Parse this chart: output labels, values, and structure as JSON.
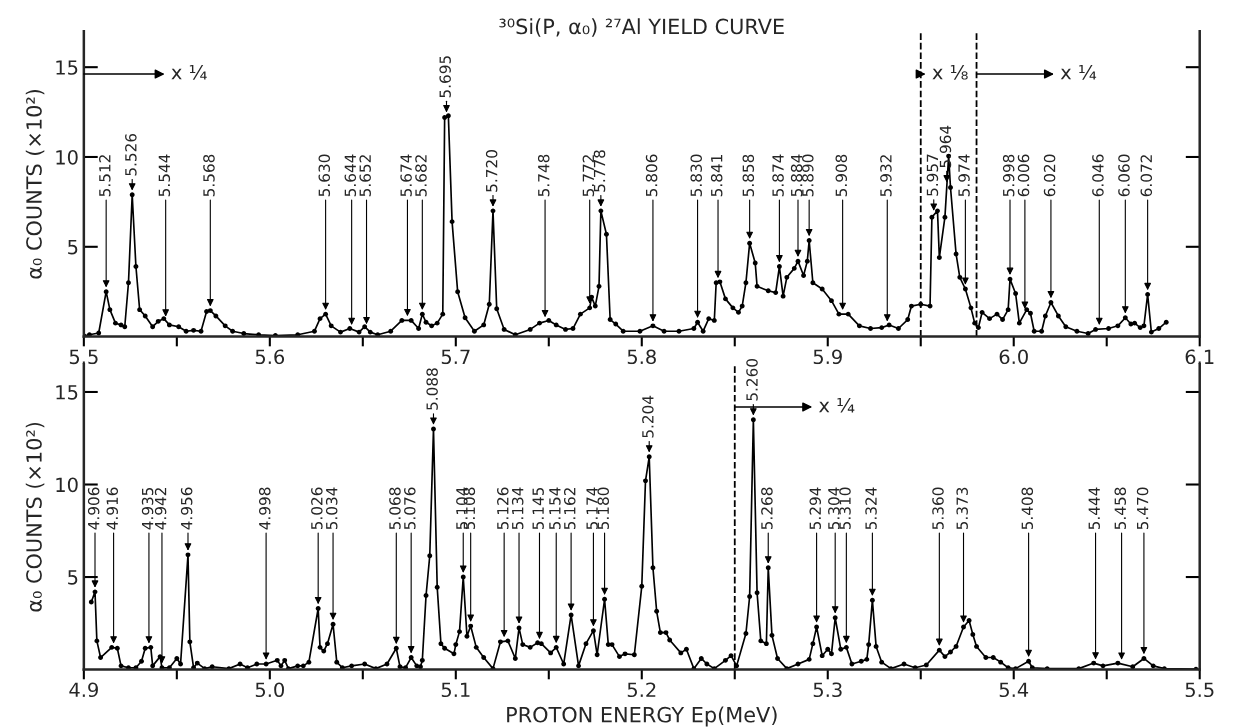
{
  "chart_data": [
    {
      "type": "line",
      "title": "³⁰Si(P, α₀) ²⁷Al YIELD CURVE",
      "ylabel": "α₀ COUNTS (×10²)",
      "x": [
        5.5,
        5.503,
        5.508,
        5.512,
        5.514,
        5.517,
        5.52,
        5.522,
        5.524,
        5.526,
        5.528,
        5.53,
        5.533,
        5.537,
        5.54,
        5.543,
        5.546,
        5.551,
        5.555,
        5.559,
        5.563,
        5.566,
        5.568,
        5.571,
        5.576,
        5.58,
        5.586,
        5.594,
        5.603,
        5.615,
        5.624,
        5.627,
        5.63,
        5.633,
        5.638,
        5.643,
        5.648,
        5.651,
        5.654,
        5.658,
        5.665,
        5.671,
        5.676,
        5.68,
        5.682,
        5.684,
        5.687,
        5.69,
        5.693,
        5.694,
        5.696,
        5.698,
        5.701,
        5.705,
        5.71,
        5.715,
        5.718,
        5.72,
        5.722,
        5.726,
        5.732,
        5.74,
        5.745,
        5.75,
        5.754,
        5.759,
        5.763,
        5.767,
        5.772,
        5.773,
        5.775,
        5.777,
        5.778,
        5.781,
        5.783,
        5.786,
        5.79,
        5.799,
        5.806,
        5.812,
        5.82,
        5.828,
        5.83,
        5.833,
        5.836,
        5.839,
        5.84,
        5.842,
        5.845,
        5.849,
        5.852,
        5.854,
        5.856,
        5.858,
        5.861,
        5.862,
        5.868,
        5.872,
        5.874,
        5.876,
        5.878,
        5.882,
        5.884,
        5.887,
        5.889,
        5.89,
        5.892,
        5.897,
        5.902,
        5.906,
        5.911,
        5.917,
        5.923,
        5.929,
        5.933,
        5.938,
        5.943,
        5.945,
        5.95,
        5.955,
        5.956,
        5.959,
        5.96,
        5.963,
        5.965,
        5.966,
        5.969,
        5.971,
        5.974,
        5.977,
        5.979,
        5.981,
        5.983,
        5.987,
        5.991,
        5.994,
        5.997,
        5.998,
        6.001,
        6.003,
        6.007,
        6.009,
        6.011,
        6.015,
        6.017,
        6.02,
        6.024,
        6.028,
        6.034,
        6.04,
        6.044,
        6.051,
        6.056,
        6.06,
        6.063,
        6.065,
        6.068,
        6.07,
        6.072,
        6.074,
        6.078,
        6.082
      ],
      "series": [
        {
          "color": "#000000",
          "values": [
            0.05,
            0.1,
            0.2,
            2.5,
            1.5,
            0.75,
            0.65,
            0.55,
            3.0,
            7.9,
            3.9,
            1.5,
            1.15,
            0.55,
            0.85,
            1.0,
            0.65,
            0.55,
            0.3,
            0.35,
            0.3,
            1.4,
            1.45,
            1.15,
            0.6,
            0.3,
            0.17,
            0.1,
            0.06,
            0.1,
            0.3,
            1.0,
            1.25,
            0.6,
            0.25,
            0.45,
            0.25,
            0.55,
            0.25,
            0.1,
            0.3,
            0.9,
            0.9,
            0.45,
            1.25,
            0.8,
            0.6,
            0.75,
            1.25,
            12.2,
            12.3,
            6.4,
            2.5,
            1.05,
            0.3,
            0.65,
            1.8,
            7.0,
            1.55,
            0.4,
            0.1,
            0.4,
            0.75,
            0.9,
            0.65,
            0.4,
            0.45,
            1.25,
            1.6,
            2.2,
            1.7,
            2.8,
            7.0,
            5.7,
            0.95,
            0.7,
            0.3,
            0.3,
            0.6,
            0.3,
            0.3,
            0.45,
            0.8,
            0.3,
            1.0,
            0.9,
            3.0,
            3.05,
            2.1,
            1.6,
            1.35,
            1.7,
            3.0,
            5.2,
            4.1,
            2.8,
            2.55,
            2.45,
            3.9,
            2.25,
            3.3,
            3.8,
            4.2,
            3.4,
            4.2,
            5.35,
            3.0,
            2.65,
            2.0,
            1.25,
            1.25,
            0.6,
            0.45,
            0.5,
            0.65,
            0.45,
            0.95,
            1.7,
            1.8,
            1.7,
            6.65,
            7.0,
            4.4,
            6.65,
            10.05,
            8.3,
            4.6,
            3.3,
            2.65,
            1.6,
            0.75,
            0.5,
            1.35,
            1.0,
            1.25,
            0.95,
            1.5,
            3.2,
            2.4,
            0.75,
            1.5,
            1.3,
            0.3,
            0.3,
            1.15,
            1.9,
            1.15,
            0.55,
            0.3,
            0.17,
            0.4,
            0.45,
            0.6,
            1.05,
            0.7,
            0.75,
            0.5,
            0.6,
            2.35,
            0.25,
            0.45,
            0.8
          ]
        }
      ],
      "xlim": [
        5.5,
        6.1
      ],
      "xticks": [
        5.5,
        {
          "value": 5.55,
          "label": null
        },
        5.6,
        {
          "value": 5.65,
          "label": null
        },
        5.7,
        {
          "value": 5.75,
          "label": null
        },
        5.8,
        {
          "value": 5.85,
          "label": null
        },
        5.9,
        {
          "value": 5.95,
          "label": null
        },
        {
          "value": 6.0,
          "label": "6.0"
        },
        {
          "value": 6.05,
          "label": null
        },
        6.1
      ],
      "ylim": [
        0,
        17
      ],
      "yticks": [
        5,
        10,
        15
      ],
      "marker": "circle",
      "line_style": "solid",
      "grid": false,
      "legend": false,
      "ref_lines": [
        {
          "axis": "x",
          "value": 5.95,
          "label": "x ⅛",
          "line_style": "dashed"
        },
        {
          "axis": "x",
          "value": 5.98,
          "label": "x ¼",
          "line_style": "dashed"
        }
      ],
      "annotations": [
        "x ¼",
        {
          "text": "5.512",
          "x": 5.512,
          "y": 2.5
        },
        {
          "text": "5.526",
          "x": 5.526,
          "y": 7.9
        },
        {
          "text": "5.544",
          "x": 5.544,
          "y": 0.88
        },
        {
          "text": "5.568",
          "x": 5.568,
          "y": 1.45
        },
        {
          "text": "5.630",
          "x": 5.63,
          "y": 1.25
        },
        {
          "text": "5.644",
          "x": 5.644,
          "y": 0.41
        },
        {
          "text": "5.652",
          "x": 5.652,
          "y": 0.45
        },
        {
          "text": "5.674",
          "x": 5.674,
          "y": 0.9
        },
        {
          "text": "5.682",
          "x": 5.682,
          "y": 1.25
        },
        {
          "text": "5.695",
          "x": 5.695,
          "y": 12.25
        },
        {
          "text": "5.720",
          "x": 5.72,
          "y": 7.0
        },
        {
          "text": "5.748",
          "x": 5.748,
          "y": 0.84
        },
        {
          "text": "5.772",
          "x": 5.772,
          "y": 1.6
        },
        {
          "text": "5.778",
          "x": 5.778,
          "y": 7.0
        },
        {
          "text": "5.806",
          "x": 5.806,
          "y": 0.6
        },
        {
          "text": "5.830",
          "x": 5.83,
          "y": 0.8
        },
        {
          "text": "5.841",
          "x": 5.841,
          "y": 3.02
        },
        {
          "text": "5.858",
          "x": 5.858,
          "y": 5.2
        },
        {
          "text": "5.874",
          "x": 5.874,
          "y": 3.9
        },
        {
          "text": "5.884",
          "x": 5.884,
          "y": 4.2
        },
        {
          "text": "5.890",
          "x": 5.89,
          "y": 5.35
        },
        {
          "text": "5.908",
          "x": 5.908,
          "y": 1.25
        },
        {
          "text": "5.932",
          "x": 5.932,
          "y": 0.61
        },
        {
          "text": "5.957",
          "x": 5.957,
          "y": 6.77
        },
        {
          "text": "5.964",
          "x": 5.964,
          "y": 8.35
        },
        {
          "text": "5.974",
          "x": 5.974,
          "y": 2.65
        },
        {
          "text": "5.998",
          "x": 5.998,
          "y": 3.2
        },
        {
          "text": "6.006",
          "x": 6.006,
          "y": 1.31
        },
        {
          "text": "6.020",
          "x": 6.02,
          "y": 1.9
        },
        {
          "text": "6.046",
          "x": 6.046,
          "y": 0.41
        },
        {
          "text": "6.060",
          "x": 6.06,
          "y": 1.05
        },
        {
          "text": "6.072",
          "x": 6.072,
          "y": 2.35
        }
      ]
    },
    {
      "type": "line",
      "xlabel": "PROTON ENERGY Ep(MeV)",
      "ylabel": "α₀ COUNTS (×10²)",
      "x": [
        4.904,
        4.906,
        4.907,
        4.909,
        4.915,
        4.918,
        4.92,
        4.924,
        4.928,
        4.931,
        4.933,
        4.936,
        4.937,
        4.941,
        4.942,
        4.946,
        4.95,
        4.952,
        4.956,
        4.957,
        4.959,
        4.961,
        4.965,
        4.969,
        4.978,
        4.984,
        4.988,
        4.993,
        4.998,
        5.004,
        5.006,
        5.008,
        5.01,
        5.015,
        5.018,
        5.021,
        5.026,
        5.027,
        5.029,
        5.031,
        5.034,
        5.036,
        5.039,
        5.044,
        5.051,
        5.057,
        5.063,
        5.068,
        5.07,
        5.073,
        5.076,
        5.079,
        5.081,
        5.082,
        5.084,
        5.086,
        5.088,
        5.09,
        5.092,
        5.094,
        5.099,
        5.1,
        5.102,
        5.104,
        5.106,
        5.108,
        5.111,
        5.115,
        5.12,
        5.124,
        5.128,
        5.132,
        5.134,
        5.136,
        5.14,
        5.144,
        5.146,
        5.151,
        5.154,
        5.158,
        5.162,
        5.166,
        5.17,
        5.174,
        5.176,
        5.18,
        5.182,
        5.184,
        5.188,
        5.191,
        5.196,
        5.2,
        5.202,
        5.204,
        5.206,
        5.208,
        5.21,
        5.213,
        5.215,
        5.221,
        5.224,
        5.228,
        5.232,
        5.235,
        5.239,
        5.245,
        5.248,
        5.251,
        5.256,
        5.258,
        5.26,
        5.262,
        5.264,
        5.267,
        5.268,
        5.27,
        5.273,
        5.278,
        5.284,
        5.29,
        5.292,
        5.294,
        5.297,
        5.3,
        5.302,
        5.304,
        5.307,
        5.31,
        5.313,
        5.318,
        5.321,
        5.322,
        5.324,
        5.326,
        5.329,
        5.334,
        5.341,
        5.347,
        5.353,
        5.36,
        5.363,
        5.366,
        5.369,
        5.373,
        5.376,
        5.378,
        5.38,
        5.385,
        5.389,
        5.393,
        5.397,
        5.401,
        5.408,
        5.41,
        5.418,
        5.435,
        5.443,
        5.448,
        5.456,
        5.464,
        5.47,
        5.475,
        5.481,
        5.498
      ],
      "series": [
        {
          "color": "#000000",
          "values": [
            3.65,
            4.2,
            1.55,
            0.65,
            1.2,
            1.15,
            0.2,
            0.1,
            0.1,
            0.45,
            1.15,
            1.2,
            0.2,
            0.7,
            0.1,
            0.1,
            0.6,
            0.3,
            6.2,
            1.5,
            0.1,
            0.35,
            0.05,
            0.15,
            0.05,
            0.3,
            0.1,
            0.3,
            0.3,
            0.5,
            0.2,
            0.5,
            0.05,
            0.2,
            0.2,
            0.4,
            3.3,
            1.2,
            1.0,
            1.4,
            2.45,
            0.4,
            0.1,
            0.2,
            0.3,
            0.05,
            0.3,
            1.15,
            0.15,
            0.1,
            0.65,
            0.2,
            0.15,
            0.5,
            4.0,
            6.15,
            13.0,
            4.45,
            1.4,
            1.15,
            0.85,
            1.35,
            2.05,
            5.0,
            1.8,
            2.35,
            1.2,
            0.65,
            0.05,
            1.5,
            1.55,
            0.6,
            2.25,
            1.35,
            1.2,
            1.45,
            1.4,
            0.9,
            1.2,
            0.3,
            2.95,
            0.2,
            1.4,
            2.1,
            0.8,
            3.8,
            1.35,
            1.35,
            0.7,
            0.85,
            0.8,
            4.5,
            10.2,
            11.5,
            5.5,
            3.15,
            2.0,
            2.0,
            1.6,
            0.9,
            1.1,
            0.05,
            0.6,
            0.3,
            0.05,
            0.5,
            0.75,
            0.2,
            1.95,
            3.95,
            13.5,
            4.15,
            1.55,
            1.4,
            5.5,
            1.85,
            0.6,
            0.05,
            0.3,
            0.55,
            1.4,
            2.3,
            0.75,
            1.1,
            0.85,
            2.8,
            1.1,
            1.2,
            0.3,
            0.45,
            0.55,
            1.35,
            3.75,
            1.25,
            0.4,
            0.05,
            0.3,
            0.1,
            0.25,
            1.05,
            0.7,
            0.95,
            1.25,
            2.3,
            2.65,
            1.9,
            1.25,
            0.65,
            0.65,
            0.4,
            0.1,
            0.05,
            0.45,
            0.1,
            0.05,
            0.05,
            0.35,
            0.2,
            0.35,
            0.15,
            0.6,
            0.2,
            0.05,
            0.02
          ]
        }
      ],
      "xlim": [
        4.9,
        5.5
      ],
      "xticks": [
        4.9,
        {
          "value": 4.95,
          "label": null
        },
        {
          "value": 5.0,
          "label": "5.0"
        },
        {
          "value": 5.05,
          "label": null
        },
        5.1,
        {
          "value": 5.15,
          "label": null
        },
        5.2,
        {
          "value": 5.25,
          "label": null
        },
        5.3,
        {
          "value": 5.35,
          "label": null
        },
        5.4,
        {
          "value": 5.45,
          "label": null
        },
        5.5
      ],
      "ylim": [
        0,
        16.5
      ],
      "yticks": [
        5,
        10,
        15
      ],
      "marker": "circle",
      "line_style": "solid",
      "grid": false,
      "legend": false,
      "ref_lines": [
        {
          "axis": "x",
          "value": 5.25,
          "label": "x ¼",
          "line_style": "dashed"
        }
      ],
      "annotations": [
        {
          "text": "4.906",
          "x": 4.906,
          "y": 4.2
        },
        {
          "text": "4.916",
          "x": 4.916,
          "y": 1.18
        },
        {
          "text": "4.935",
          "x": 4.935,
          "y": 1.18
        },
        {
          "text": "4.942",
          "x": 4.942,
          "y": 0.1
        },
        {
          "text": "4.956",
          "x": 4.956,
          "y": 6.2
        },
        {
          "text": "4.998",
          "x": 4.998,
          "y": 0.3
        },
        {
          "text": "5.026",
          "x": 5.026,
          "y": 3.3
        },
        {
          "text": "5.034",
          "x": 5.034,
          "y": 2.45
        },
        {
          "text": "5.068",
          "x": 5.068,
          "y": 1.15
        },
        {
          "text": "5.076",
          "x": 5.076,
          "y": 0.65
        },
        {
          "text": "5.088",
          "x": 5.088,
          "y": 13.0
        },
        {
          "text": "5.104",
          "x": 5.104,
          "y": 5.0
        },
        {
          "text": "5.108",
          "x": 5.108,
          "y": 2.35
        },
        {
          "text": "5.126",
          "x": 5.126,
          "y": 1.52
        },
        {
          "text": "5.134",
          "x": 5.134,
          "y": 2.25
        },
        {
          "text": "5.145",
          "x": 5.145,
          "y": 1.42
        },
        {
          "text": "5.154",
          "x": 5.154,
          "y": 1.2
        },
        {
          "text": "5.162",
          "x": 5.162,
          "y": 2.95
        },
        {
          "text": "5.174",
          "x": 5.174,
          "y": 2.1
        },
        {
          "text": "5.180",
          "x": 5.18,
          "y": 3.8
        },
        {
          "text": "5.204",
          "x": 5.204,
          "y": 11.5
        },
        {
          "text": "5.260",
          "x": 5.26,
          "y": 13.5
        },
        {
          "text": "5.268",
          "x": 5.268,
          "y": 5.5
        },
        {
          "text": "5.294",
          "x": 5.294,
          "y": 2.3
        },
        {
          "text": "5.304",
          "x": 5.304,
          "y": 2.8
        },
        {
          "text": "5.310",
          "x": 5.31,
          "y": 1.2
        },
        {
          "text": "5.324",
          "x": 5.324,
          "y": 3.75
        },
        {
          "text": "5.360",
          "x": 5.36,
          "y": 1.05
        },
        {
          "text": "5.373",
          "x": 5.373,
          "y": 2.3
        },
        {
          "text": "5.408",
          "x": 5.408,
          "y": 0.45
        },
        {
          "text": "5.444",
          "x": 5.444,
          "y": 0.32
        },
        {
          "text": "5.458",
          "x": 5.458,
          "y": 0.3
        },
        {
          "text": "5.470",
          "x": 5.47,
          "y": 0.6
        }
      ]
    }
  ]
}
